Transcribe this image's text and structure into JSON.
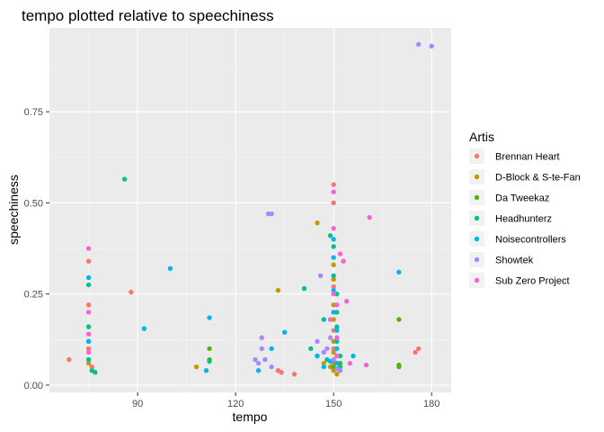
{
  "chart_data": {
    "type": "scatter",
    "title": "tempo plotted relative to speechiness",
    "xlabel": "tempo",
    "ylabel": "speechiness",
    "xlim": [
      63,
      186
    ],
    "ylim": [
      -0.02,
      0.98
    ],
    "xticks": [
      90,
      120,
      150,
      180
    ],
    "yticks": [
      0.0,
      0.25,
      0.5,
      0.75
    ],
    "ytick_labels": [
      "0.00",
      "0.25",
      "0.50",
      "0.75"
    ],
    "grid": true,
    "legend": {
      "title": "Artis",
      "position": "right",
      "entries": [
        {
          "name": "Brennan Heart",
          "color": "#F8766D"
        },
        {
          "name": "D-Block & S-te-Fan",
          "color": "#C49A00"
        },
        {
          "name": "Da Tweekaz",
          "color": "#53B400"
        },
        {
          "name": "Headhunterz",
          "color": "#00C094"
        },
        {
          "name": "Noisecontrollers",
          "color": "#00B6EB"
        },
        {
          "name": "Showtek",
          "color": "#A58AFF"
        },
        {
          "name": "Sub Zero Project",
          "color": "#FB61D7"
        }
      ]
    },
    "series": [
      {
        "name": "Brennan Heart",
        "points": [
          [
            69,
            0.07
          ],
          [
            75,
            0.34
          ],
          [
            75,
            0.22
          ],
          [
            75,
            0.16
          ],
          [
            75,
            0.1
          ],
          [
            75,
            0.07
          ],
          [
            76,
            0.05
          ],
          [
            88,
            0.255
          ],
          [
            133,
            0.04
          ],
          [
            134,
            0.035
          ],
          [
            138,
            0.03
          ],
          [
            150,
            0.55
          ],
          [
            150,
            0.5
          ],
          [
            150,
            0.27
          ],
          [
            150,
            0.2
          ],
          [
            150,
            0.15
          ],
          [
            150,
            0.1
          ],
          [
            151,
            0.06
          ],
          [
            175,
            0.09
          ],
          [
            176,
            0.1
          ]
        ]
      },
      {
        "name": "D-Block & S-te-Fan",
        "points": [
          [
            75,
            0.06
          ],
          [
            108,
            0.05
          ],
          [
            133,
            0.26
          ],
          [
            145,
            0.445
          ],
          [
            147,
            0.06
          ],
          [
            149,
            0.05
          ],
          [
            150,
            0.33
          ],
          [
            150,
            0.29
          ],
          [
            150,
            0.22
          ],
          [
            150,
            0.18
          ],
          [
            150,
            0.12
          ],
          [
            150,
            0.09
          ],
          [
            150,
            0.06
          ],
          [
            150,
            0.04
          ],
          [
            151,
            0.03
          ]
        ]
      },
      {
        "name": "Da Tweekaz",
        "points": [
          [
            112,
            0.1
          ],
          [
            112,
            0.07
          ],
          [
            150,
            0.05
          ],
          [
            151,
            0.08
          ],
          [
            152,
            0.06
          ],
          [
            170,
            0.18
          ],
          [
            170,
            0.055
          ],
          [
            170,
            0.05
          ]
        ]
      },
      {
        "name": "Headhunterz",
        "points": [
          [
            75,
            0.275
          ],
          [
            75,
            0.16
          ],
          [
            75,
            0.12
          ],
          [
            75,
            0.07
          ],
          [
            76,
            0.04
          ],
          [
            77,
            0.035
          ],
          [
            86,
            0.565
          ],
          [
            112,
            0.065
          ],
          [
            141,
            0.265
          ],
          [
            143,
            0.1
          ],
          [
            145,
            0.08
          ],
          [
            147,
            0.18
          ],
          [
            148,
            0.07
          ],
          [
            149,
            0.41
          ],
          [
            150,
            0.38
          ],
          [
            150,
            0.3
          ],
          [
            151,
            0.25
          ],
          [
            151,
            0.2
          ],
          [
            151,
            0.16
          ],
          [
            151,
            0.12
          ],
          [
            152,
            0.08
          ],
          [
            152,
            0.05
          ]
        ]
      },
      {
        "name": "Noisecontrollers",
        "points": [
          [
            75,
            0.295
          ],
          [
            75,
            0.12
          ],
          [
            92,
            0.155
          ],
          [
            100,
            0.32
          ],
          [
            111,
            0.04
          ],
          [
            112,
            0.185
          ],
          [
            127,
            0.04
          ],
          [
            131,
            0.1
          ],
          [
            135,
            0.145
          ],
          [
            145,
            0.08
          ],
          [
            147,
            0.05
          ],
          [
            149,
            0.065
          ],
          [
            150,
            0.4
          ],
          [
            150,
            0.35
          ],
          [
            150,
            0.26
          ],
          [
            150,
            0.2
          ],
          [
            151,
            0.15
          ],
          [
            151,
            0.1
          ],
          [
            151,
            0.06
          ],
          [
            156,
            0.08
          ],
          [
            170,
            0.31
          ]
        ]
      },
      {
        "name": "Showtek",
        "points": [
          [
            126,
            0.07
          ],
          [
            127,
            0.06
          ],
          [
            128,
            0.13
          ],
          [
            128,
            0.1
          ],
          [
            129,
            0.07
          ],
          [
            130,
            0.47
          ],
          [
            131,
            0.47
          ],
          [
            131,
            0.05
          ],
          [
            145,
            0.12
          ],
          [
            146,
            0.3
          ],
          [
            147,
            0.09
          ],
          [
            148,
            0.1
          ],
          [
            149,
            0.13
          ],
          [
            150,
            0.07
          ],
          [
            151,
            0.045
          ],
          [
            152,
            0.04
          ],
          [
            176,
            0.935
          ],
          [
            180,
            0.93
          ]
        ]
      },
      {
        "name": "Sub Zero Project",
        "points": [
          [
            75,
            0.375
          ],
          [
            75,
            0.2
          ],
          [
            75,
            0.14
          ],
          [
            75,
            0.09
          ],
          [
            149,
            0.18
          ],
          [
            150,
            0.53
          ],
          [
            150,
            0.43
          ],
          [
            150,
            0.25
          ],
          [
            151,
            0.22
          ],
          [
            151,
            0.13
          ],
          [
            151,
            0.08
          ],
          [
            152,
            0.36
          ],
          [
            153,
            0.34
          ],
          [
            154,
            0.23
          ],
          [
            155,
            0.06
          ],
          [
            160,
            0.055
          ],
          [
            161,
            0.46
          ]
        ]
      }
    ]
  }
}
